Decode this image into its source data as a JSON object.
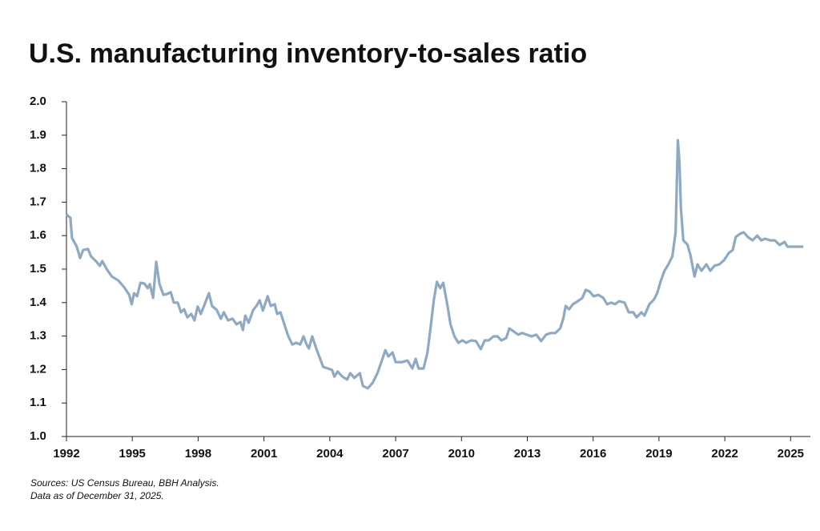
{
  "chart_data": {
    "type": "line",
    "title": "U.S. manufacturing inventory-to-sales ratio",
    "notes": [
      "Sources: US Census Bureau, BBH Analysis.",
      "Data as of December 31, 2025."
    ],
    "xlim": [
      1992,
      2025.9
    ],
    "xticks": [
      1992,
      1995,
      1998,
      2001,
      2004,
      2007,
      2010,
      2013,
      2016,
      2019,
      2022,
      2025
    ],
    "ylim": [
      1.0,
      2.0
    ],
    "yticks": [
      {
        "value": 1.0,
        "label": "1.0"
      },
      1.1,
      1.2,
      1.3,
      1.4,
      1.5,
      1.6,
      1.7,
      1.8,
      1.9,
      {
        "value": 2.0,
        "label": "2.0"
      }
    ],
    "series": [
      {
        "color": "#8ea9c1",
        "x": [
          1992.0,
          1992.18,
          1992.25,
          1992.47,
          1992.62,
          1992.76,
          1992.98,
          1993.12,
          1993.34,
          1993.52,
          1993.63,
          1993.85,
          1994.07,
          1994.36,
          1994.64,
          1994.86,
          1994.97,
          1995.08,
          1995.22,
          1995.37,
          1995.55,
          1995.7,
          1995.8,
          1995.95,
          1996.09,
          1996.24,
          1996.42,
          1996.6,
          1996.75,
          1996.89,
          1997.07,
          1997.22,
          1997.36,
          1997.51,
          1997.69,
          1997.83,
          1997.98,
          1998.12,
          1998.3,
          1998.49,
          1998.63,
          1998.85,
          1999.03,
          1999.17,
          1999.36,
          1999.57,
          1999.75,
          1999.93,
          2000.04,
          2000.15,
          2000.3,
          2000.51,
          2000.66,
          2000.8,
          2000.95,
          2001.17,
          2001.31,
          2001.49,
          2001.6,
          2001.75,
          2001.93,
          2002.11,
          2002.29,
          2002.47,
          2002.65,
          2002.8,
          2002.94,
          2003.05,
          2003.2,
          2003.38,
          2003.56,
          2003.7,
          2003.92,
          2004.1,
          2004.21,
          2004.36,
          2004.57,
          2004.79,
          2004.93,
          2005.12,
          2005.37,
          2005.51,
          2005.73,
          2005.95,
          2006.17,
          2006.35,
          2006.53,
          2006.67,
          2006.86,
          2007.0,
          2007.29,
          2007.54,
          2007.76,
          2007.91,
          2008.05,
          2008.27,
          2008.45,
          2008.59,
          2008.74,
          2008.88,
          2009.03,
          2009.17,
          2009.35,
          2009.5,
          2009.68,
          2009.86,
          2010.04,
          2010.22,
          2010.44,
          2010.66,
          2010.88,
          2011.06,
          2011.24,
          2011.46,
          2011.64,
          2011.82,
          2012.04,
          2012.18,
          2012.4,
          2012.58,
          2012.76,
          2012.98,
          2013.2,
          2013.41,
          2013.63,
          2013.85,
          2014.07,
          2014.28,
          2014.5,
          2014.64,
          2014.75,
          2014.9,
          2015.08,
          2015.3,
          2015.51,
          2015.66,
          2015.84,
          2016.02,
          2016.24,
          2016.46,
          2016.64,
          2016.82,
          2017.0,
          2017.18,
          2017.43,
          2017.62,
          2017.83,
          2017.98,
          2018.2,
          2018.34,
          2018.56,
          2018.77,
          2018.92,
          2019.07,
          2019.25,
          2019.43,
          2019.61,
          2019.76,
          2019.86,
          2019.93,
          2020.0,
          2020.11,
          2020.29,
          2020.43,
          2020.62,
          2020.76,
          2020.94,
          2021.16,
          2021.34,
          2021.53,
          2021.75,
          2021.96,
          2022.18,
          2022.36,
          2022.5,
          2022.68,
          2022.86,
          2023.05,
          2023.26,
          2023.48,
          2023.66,
          2023.84,
          2024.06,
          2024.28,
          2024.5,
          2024.72,
          2024.86,
          2025.22,
          2025.58
        ],
        "values": [
          1.663,
          1.653,
          1.593,
          1.567,
          1.533,
          1.557,
          1.56,
          1.538,
          1.524,
          1.51,
          1.524,
          1.498,
          1.478,
          1.466,
          1.445,
          1.423,
          1.395,
          1.428,
          1.419,
          1.459,
          1.457,
          1.443,
          1.455,
          1.414,
          1.522,
          1.455,
          1.423,
          1.426,
          1.431,
          1.4,
          1.4,
          1.371,
          1.38,
          1.356,
          1.366,
          1.347,
          1.388,
          1.366,
          1.395,
          1.428,
          1.39,
          1.378,
          1.352,
          1.371,
          1.347,
          1.352,
          1.335,
          1.342,
          1.318,
          1.361,
          1.34,
          1.378,
          1.39,
          1.407,
          1.376,
          1.419,
          1.39,
          1.395,
          1.366,
          1.371,
          1.335,
          1.299,
          1.275,
          1.28,
          1.275,
          1.299,
          1.275,
          1.263,
          1.299,
          1.263,
          1.232,
          1.208,
          1.203,
          1.199,
          1.179,
          1.194,
          1.179,
          1.17,
          1.189,
          1.175,
          1.189,
          1.151,
          1.144,
          1.16,
          1.189,
          1.222,
          1.258,
          1.239,
          1.251,
          1.222,
          1.222,
          1.227,
          1.203,
          1.232,
          1.203,
          1.203,
          1.251,
          1.323,
          1.407,
          1.462,
          1.443,
          1.459,
          1.395,
          1.335,
          1.299,
          1.28,
          1.287,
          1.28,
          1.287,
          1.285,
          1.261,
          1.287,
          1.287,
          1.299,
          1.299,
          1.287,
          1.294,
          1.323,
          1.313,
          1.304,
          1.309,
          1.304,
          1.299,
          1.304,
          1.285,
          1.304,
          1.309,
          1.309,
          1.323,
          1.352,
          1.39,
          1.38,
          1.395,
          1.404,
          1.414,
          1.438,
          1.433,
          1.419,
          1.423,
          1.414,
          1.395,
          1.4,
          1.395,
          1.404,
          1.4,
          1.371,
          1.371,
          1.356,
          1.371,
          1.361,
          1.395,
          1.409,
          1.428,
          1.462,
          1.495,
          1.514,
          1.538,
          1.61,
          1.885,
          1.825,
          1.682,
          1.586,
          1.574,
          1.543,
          1.478,
          1.514,
          1.495,
          1.514,
          1.495,
          1.51,
          1.514,
          1.526,
          1.548,
          1.557,
          1.596,
          1.605,
          1.61,
          1.596,
          1.586,
          1.6,
          1.586,
          1.591,
          1.586,
          1.586,
          1.572,
          1.581,
          1.567,
          1.567,
          1.567
        ]
      }
    ]
  }
}
